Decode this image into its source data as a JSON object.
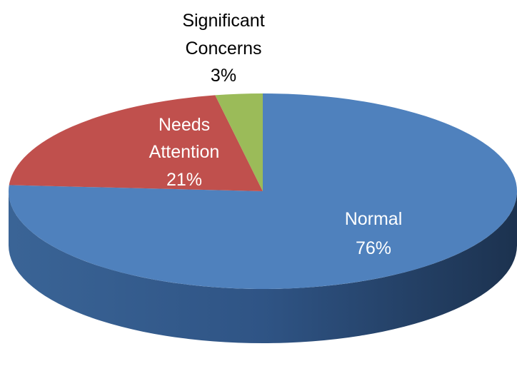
{
  "chart_data": {
    "type": "pie",
    "title": "",
    "slices": [
      {
        "label": "Normal",
        "value": 76,
        "value_text": "76%",
        "color": "#4f81bd",
        "label_color": "#ffffff"
      },
      {
        "label": "Needs Attention",
        "label_lines": [
          "Needs",
          "Attention"
        ],
        "value": 21,
        "value_text": "21%",
        "color": "#c0504d",
        "label_color": "#ffffff"
      },
      {
        "label": "Significant Concerns",
        "label_lines": [
          "Significant",
          "Concerns"
        ],
        "value": 3,
        "value_text": "3%",
        "color": "#9bbb59",
        "label_color": "#000000"
      }
    ],
    "style": "3d",
    "legend": "none"
  }
}
